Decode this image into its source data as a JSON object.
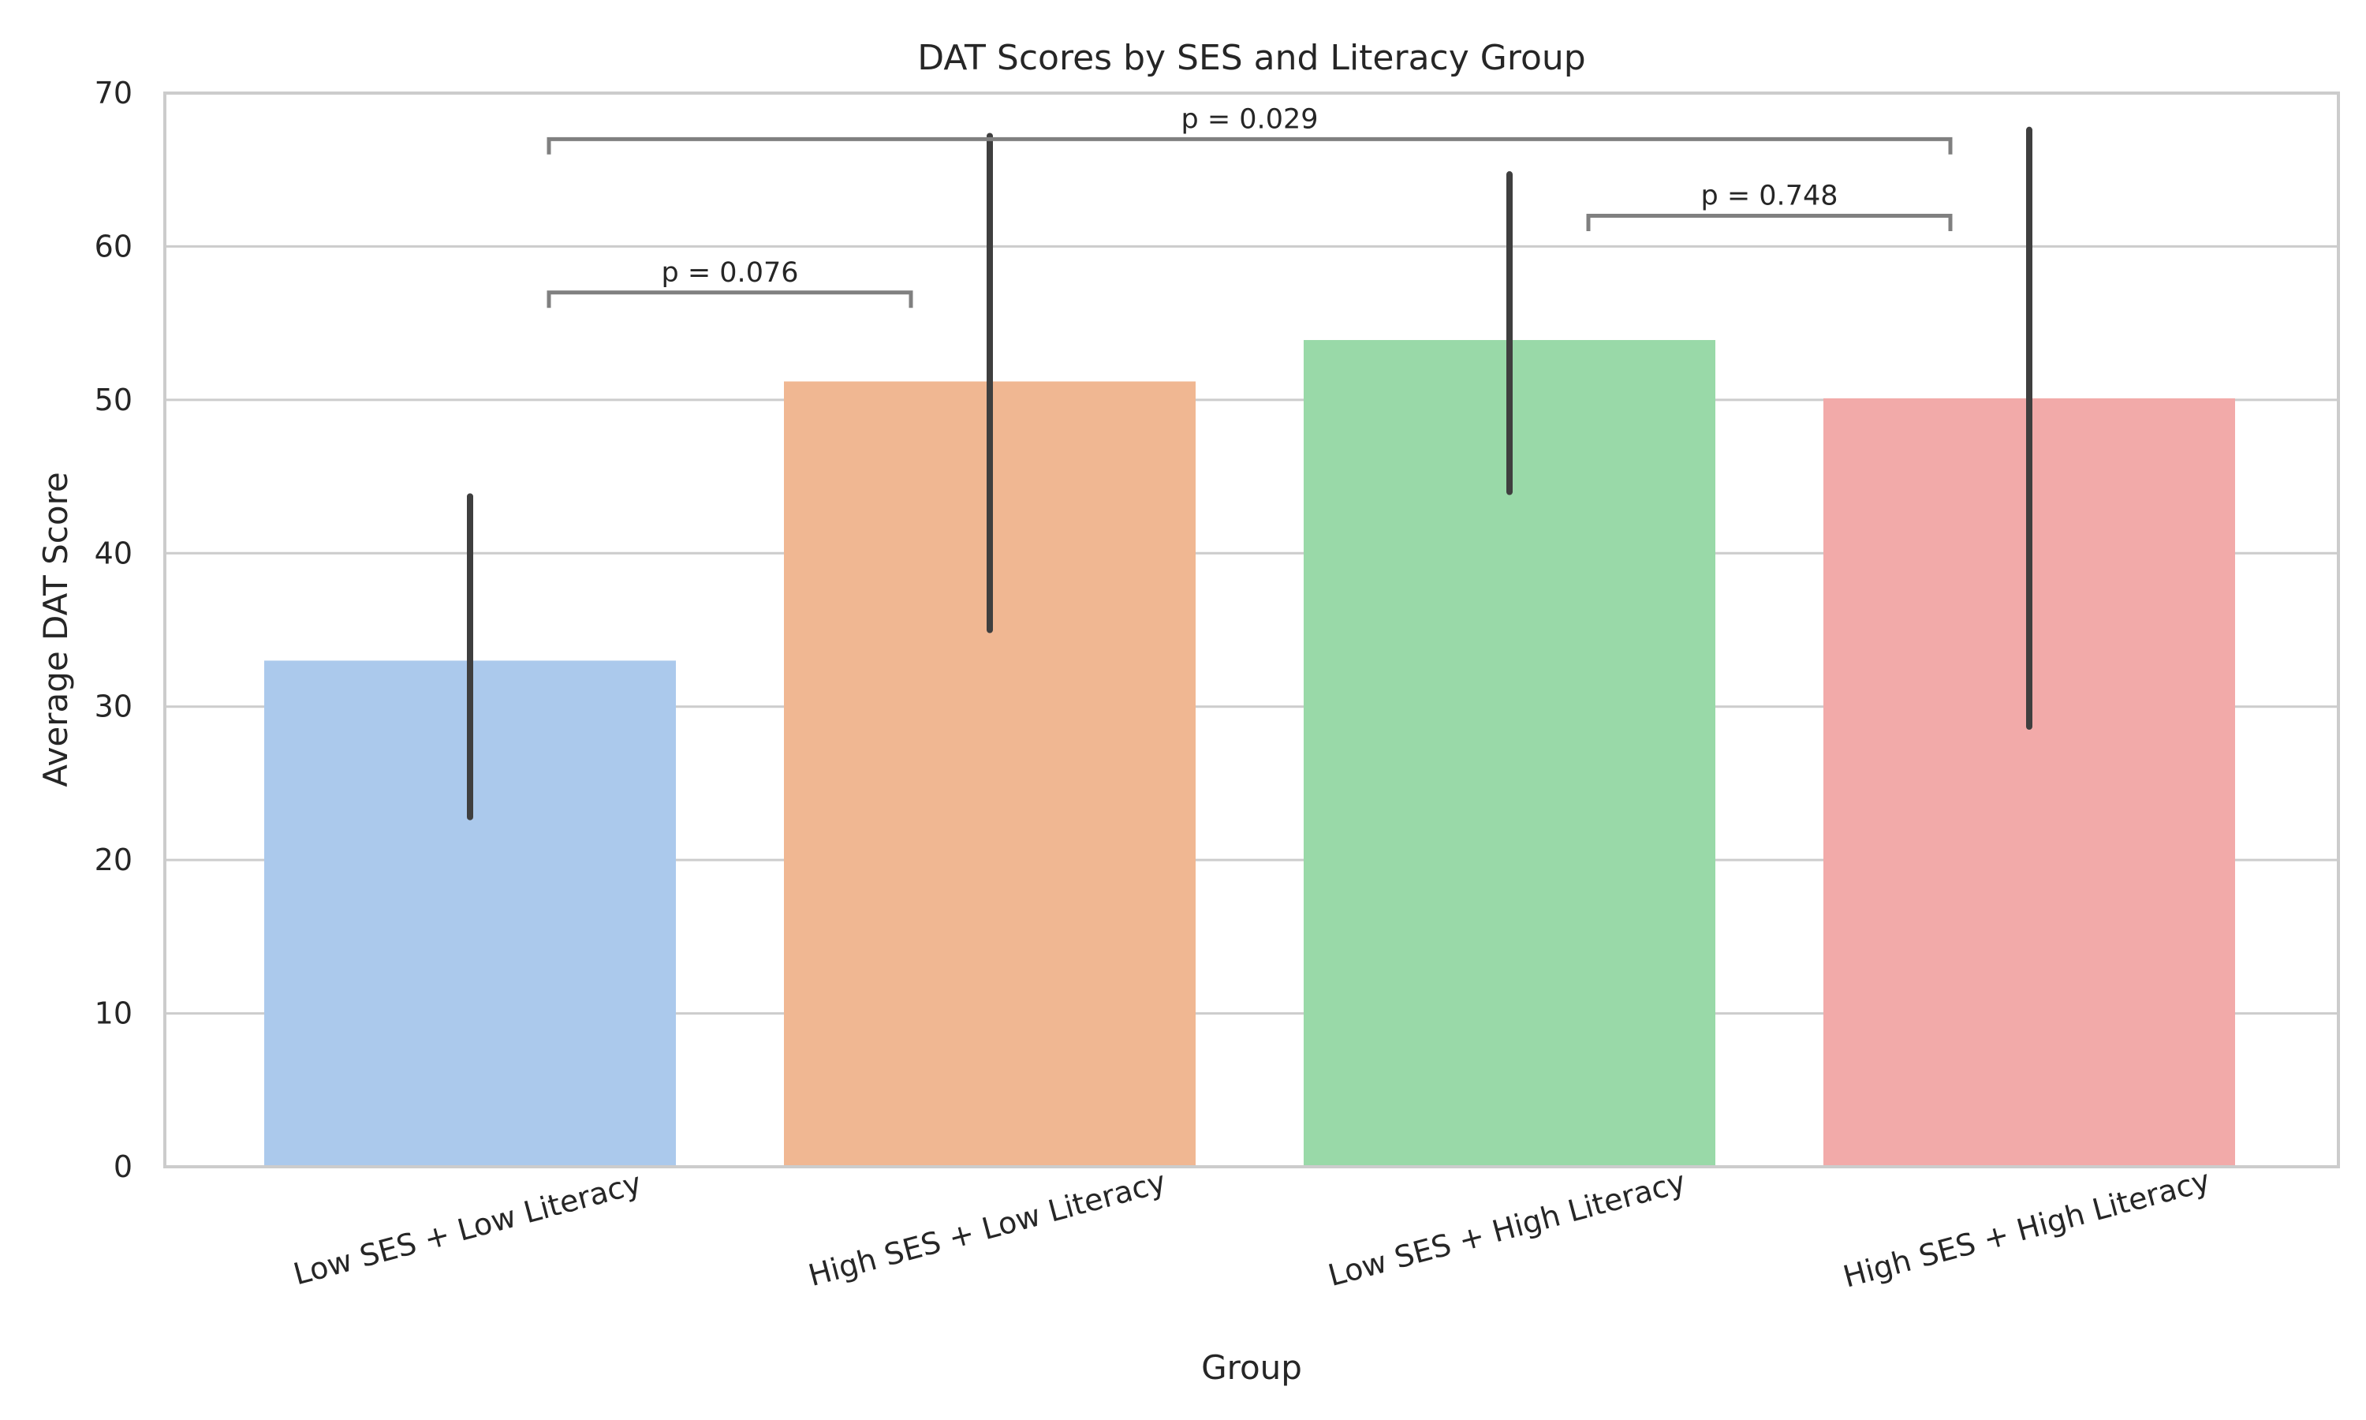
{
  "chart_data": {
    "type": "bar",
    "title": "DAT Scores by SES and Literacy Group",
    "xlabel": "Group",
    "ylabel": "Average DAT Score",
    "ylim": [
      0,
      70
    ],
    "yticks": [
      0,
      10,
      20,
      30,
      40,
      50,
      60,
      70
    ],
    "grid": true,
    "categories": [
      "Low SES + Low Literacy",
      "High SES + Low Literacy",
      "Low SES + High Literacy",
      "High SES + High Literacy"
    ],
    "values": [
      33.0,
      51.2,
      53.9,
      50.1
    ],
    "error_low": [
      22.8,
      35.0,
      44.0,
      28.7
    ],
    "error_high": [
      43.7,
      67.2,
      64.7,
      67.6
    ],
    "colors": [
      "#abc9ec",
      "#f0b792",
      "#99d9a8",
      "#f2aaa9"
    ],
    "comparisons": [
      {
        "from": 0,
        "to": 1,
        "label": "p = 0.076",
        "y": 57
      },
      {
        "from": 0,
        "to": 3,
        "label": "p = 0.029",
        "y": 67
      },
      {
        "from": 2,
        "to": 3,
        "label": "p = 0.748",
        "y": 62
      }
    ]
  }
}
